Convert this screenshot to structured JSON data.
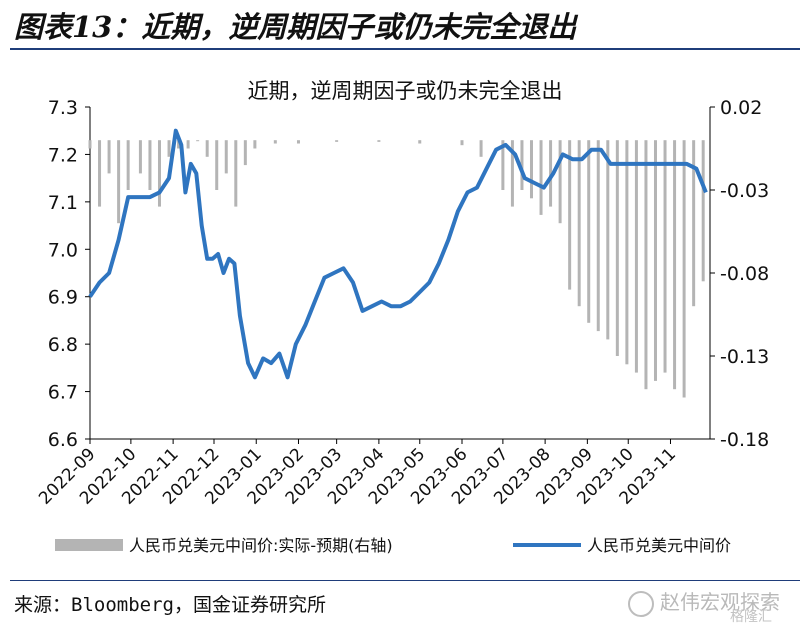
{
  "header": {
    "title": "图表13：近期，逆周期因子或仍未完全退出"
  },
  "source": "来源：Bloomberg，国金证券研究所",
  "watermark": {
    "name": "赵伟宏观探索",
    "sub": "格隆汇"
  },
  "colors": {
    "line": "#2f75c0",
    "bars": "#b4b4b4",
    "axis": "#000000"
  },
  "chart_data": {
    "type": "bar+line",
    "title": "近期，逆周期因子或仍未完全退出",
    "x_tick_labels": [
      "2022-09",
      "2022-10",
      "2022-11",
      "2022-12",
      "2023-01",
      "2023-02",
      "2023-03",
      "2023-04",
      "2023-05",
      "2023-06",
      "2023-07",
      "2023-08",
      "2023-09",
      "2023-10",
      "2023-11"
    ],
    "y_left": {
      "ticks": [
        "6.6",
        "6.7",
        "6.8",
        "6.9",
        "7.0",
        "7.1",
        "7.2",
        "7.3"
      ],
      "ylim": [
        6.6,
        7.3
      ]
    },
    "y_right": {
      "ticks": [
        "0.02",
        "-0.03",
        "-0.08",
        "-0.13",
        "-0.18"
      ],
      "ylim": [
        -0.18,
        0.02
      ]
    },
    "series": [
      {
        "name": "人民币兑美元中间价:实际-预期(右轴)",
        "axis": "right",
        "kind": "bar",
        "x": [
          "2022-09-01",
          "2022-09-08",
          "2022-09-15",
          "2022-09-22",
          "2022-09-29",
          "2022-10-08",
          "2022-10-15",
          "2022-10-22",
          "2022-10-29",
          "2022-11-05",
          "2022-11-12",
          "2022-11-19",
          "2022-11-26",
          "2022-12-03",
          "2022-12-10",
          "2022-12-17",
          "2022-12-24",
          "2022-12-31",
          "2023-01-15",
          "2023-02-01",
          "2023-03-01",
          "2023-04-01",
          "2023-05-01",
          "2023-06-01",
          "2023-06-15",
          "2023-07-01",
          "2023-07-08",
          "2023-07-15",
          "2023-07-22",
          "2023-07-29",
          "2023-08-05",
          "2023-08-12",
          "2023-08-19",
          "2023-08-26",
          "2023-09-02",
          "2023-09-09",
          "2023-09-16",
          "2023-09-23",
          "2023-09-30",
          "2023-10-07",
          "2023-10-14",
          "2023-10-21",
          "2023-10-28",
          "2023-11-04",
          "2023-11-11",
          "2023-11-18",
          "2023-11-25"
        ],
        "values": [
          -0.005,
          -0.04,
          -0.02,
          -0.05,
          -0.03,
          -0.02,
          -0.03,
          -0.04,
          -0.01,
          -0.005,
          -0.005,
          0.0,
          -0.01,
          -0.03,
          -0.02,
          -0.04,
          -0.015,
          -0.005,
          -0.002,
          -0.002,
          -0.001,
          -0.001,
          -0.002,
          -0.003,
          -0.01,
          -0.03,
          -0.04,
          -0.03,
          -0.035,
          -0.045,
          -0.04,
          -0.05,
          -0.09,
          -0.1,
          -0.11,
          -0.115,
          -0.12,
          -0.13,
          -0.135,
          -0.14,
          -0.15,
          -0.145,
          -0.14,
          -0.15,
          -0.155,
          -0.1,
          -0.085
        ]
      },
      {
        "name": "人民币兑美元中间价",
        "axis": "left",
        "kind": "line",
        "x": [
          "2022-09-01",
          "2022-09-08",
          "2022-09-15",
          "2022-09-22",
          "2022-09-29",
          "2022-10-08",
          "2022-10-15",
          "2022-10-22",
          "2022-10-29",
          "2022-11-03",
          "2022-11-07",
          "2022-11-10",
          "2022-11-14",
          "2022-11-18",
          "2022-11-22",
          "2022-11-26",
          "2022-11-30",
          "2022-12-04",
          "2022-12-08",
          "2022-12-12",
          "2022-12-16",
          "2022-12-20",
          "2022-12-26",
          "2022-12-31",
          "2023-01-06",
          "2023-01-12",
          "2023-01-18",
          "2023-01-24",
          "2023-01-30",
          "2023-02-06",
          "2023-02-13",
          "2023-02-20",
          "2023-02-27",
          "2023-03-06",
          "2023-03-13",
          "2023-03-20",
          "2023-03-27",
          "2023-04-03",
          "2023-04-10",
          "2023-04-17",
          "2023-04-24",
          "2023-05-01",
          "2023-05-08",
          "2023-05-15",
          "2023-05-22",
          "2023-05-29",
          "2023-06-05",
          "2023-06-12",
          "2023-06-19",
          "2023-06-26",
          "2023-07-03",
          "2023-07-10",
          "2023-07-17",
          "2023-07-24",
          "2023-07-31",
          "2023-08-07",
          "2023-08-14",
          "2023-08-21",
          "2023-08-28",
          "2023-09-04",
          "2023-09-11",
          "2023-09-18",
          "2023-09-25",
          "2023-10-02",
          "2023-10-09",
          "2023-10-16",
          "2023-10-23",
          "2023-10-30",
          "2023-11-06",
          "2023-11-13",
          "2023-11-20",
          "2023-11-27"
        ],
        "values": [
          6.9,
          6.93,
          6.95,
          7.02,
          7.11,
          7.11,
          7.11,
          7.12,
          7.15,
          7.25,
          7.22,
          7.12,
          7.18,
          7.16,
          7.05,
          6.98,
          6.98,
          6.99,
          6.95,
          6.98,
          6.97,
          6.86,
          6.76,
          6.73,
          6.77,
          6.76,
          6.78,
          6.73,
          6.8,
          6.84,
          6.89,
          6.94,
          6.95,
          6.96,
          6.93,
          6.87,
          6.88,
          6.89,
          6.88,
          6.88,
          6.89,
          6.91,
          6.93,
          6.97,
          7.02,
          7.08,
          7.12,
          7.13,
          7.17,
          7.21,
          7.22,
          7.2,
          7.15,
          7.14,
          7.13,
          7.16,
          7.2,
          7.19,
          7.19,
          7.21,
          7.21,
          7.18,
          7.18,
          7.18,
          7.18,
          7.18,
          7.18,
          7.18,
          7.18,
          7.18,
          7.17,
          7.12
        ]
      }
    ],
    "legend": {
      "placement": "bottom"
    }
  }
}
